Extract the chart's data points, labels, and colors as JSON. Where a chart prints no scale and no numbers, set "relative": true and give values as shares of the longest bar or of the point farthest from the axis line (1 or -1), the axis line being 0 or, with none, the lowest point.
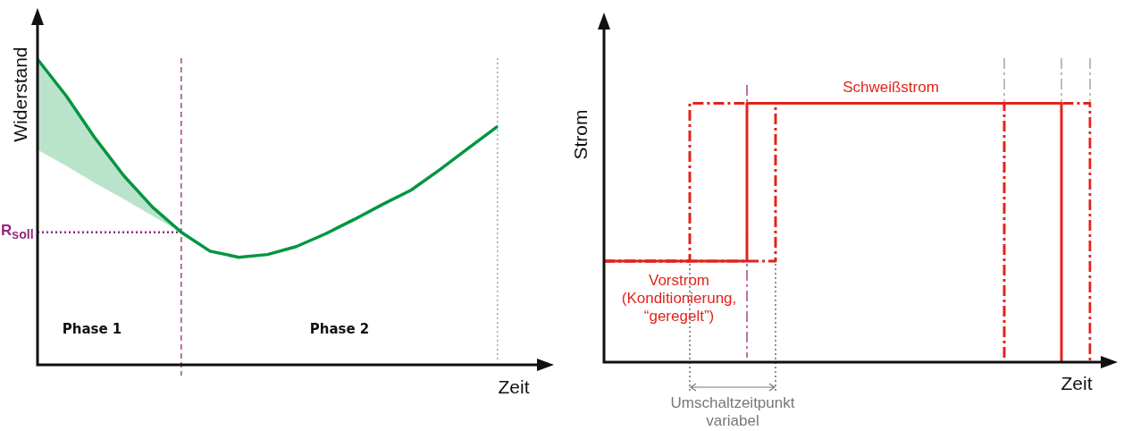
{
  "chart_data": [
    {
      "type": "line",
      "xlabel": "Zeit",
      "ylabel": "Widerstand",
      "relative": true,
      "categories": [
        null,
        null,
        null,
        null,
        null,
        null,
        null,
        null,
        null,
        null,
        null,
        null,
        null,
        null,
        null,
        null,
        null,
        null
      ],
      "series": [
        {
          "color": "#009640",
          "values": [
            1.0,
            0.88,
            0.742,
            0.619,
            0.516,
            0.434,
            0.372,
            0.352,
            0.361,
            0.387,
            0.428,
            0.475,
            0.525,
            0.572,
            0.639,
            0.71,
            0.78,
            null
          ],
          "lower": [
            0.704,
            0.651,
            0.595,
            0.543,
            0.487,
            0.434,
            null,
            null,
            null,
            null,
            null,
            null,
            null,
            null,
            null,
            null,
            null,
            null
          ],
          "upper": [
            1.0,
            0.88,
            0.742,
            0.619,
            0.516,
            0.434,
            null,
            null,
            null,
            null,
            null,
            null,
            null,
            null,
            null,
            null,
            null,
            null
          ]
        }
      ],
      "ref_lines": [
        {
          "axis": "y",
          "value": 0.434,
          "label": "R$_{soll}$",
          "color": "#93297f",
          "line_style": "dotted"
        }
      ],
      "annotations": [
        "Phase 1",
        "Phase 2"
      ]
    },
    {
      "type": "step",
      "xlabel": "Zeit",
      "ylabel": "Strom",
      "relative": true,
      "categories": [
        null,
        null,
        null,
        null,
        null,
        null,
        null,
        null,
        null,
        null,
        null,
        null,
        null,
        null,
        null,
        null,
        null,
        null
      ],
      "series": [
        {
          "color": "#e2231a",
          "line_style": "solid",
          "values": [
            0.39,
            0.39,
            0.39,
            0.39,
            0.39,
            1,
            1,
            1,
            1,
            1,
            1,
            1,
            1,
            1,
            1,
            1,
            0,
            null
          ]
        },
        {
          "color": "#e2231a",
          "line_style": "dashed",
          "values": [
            0.39,
            0.39,
            0.39,
            1,
            1,
            1,
            1,
            1,
            1,
            1,
            1,
            1,
            1,
            1,
            0,
            null,
            null,
            null
          ]
        },
        {
          "color": "#e2231a",
          "line_style": "dashed",
          "values": [
            0.39,
            0.39,
            0.39,
            0.39,
            0.39,
            0.39,
            1,
            1,
            1,
            1,
            1,
            1,
            1,
            1,
            1,
            1,
            1,
            0
          ]
        }
      ],
      "annotations": [
        "Schweißstrom",
        "Vorstrom (Konditionierung, “geregelt”)",
        "Umschaltzeitpunkt variabel"
      ]
    }
  ]
}
